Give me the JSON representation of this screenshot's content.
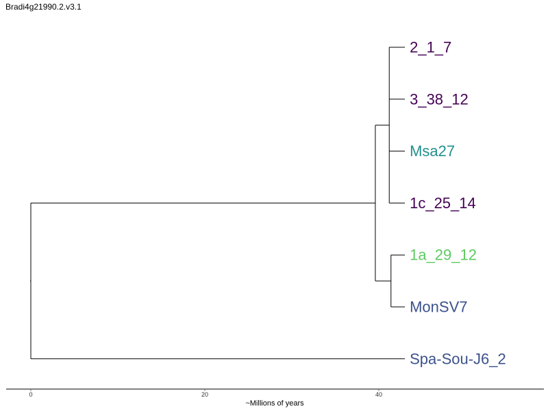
{
  "title": "Bradi4g21990.2.v3.1",
  "axis": {
    "label": "~Millions of years",
    "ticks": [
      {
        "value": 0,
        "label": "0"
      },
      {
        "value": 20,
        "label": "20"
      },
      {
        "value": 40,
        "label": "40"
      }
    ]
  },
  "colors": {
    "branch": "#000000",
    "purple": "#440154",
    "teal": "#21908c",
    "green": "#5ec962",
    "blue": "#3b528b"
  },
  "chart_data": {
    "type": "dendrogram",
    "title": "Bradi4g21990.2.v3.1",
    "xlabel": "~Millions of years",
    "xlim": [
      0,
      58.5
    ],
    "leaves": [
      {
        "name": "2_1_7",
        "color": "#440154",
        "depth": 43.0
      },
      {
        "name": "3_38_12",
        "color": "#440154",
        "depth": 43.0
      },
      {
        "name": "Msa27",
        "color": "#21908c",
        "depth": 43.0
      },
      {
        "name": "1c_25_14",
        "color": "#440154",
        "depth": 43.0
      },
      {
        "name": "1a_29_12",
        "color": "#5ec962",
        "depth": 43.0
      },
      {
        "name": "MonSV7",
        "color": "#3b528b",
        "depth": 43.0
      },
      {
        "name": "Spa-Sou-J6_2",
        "color": "#3b528b",
        "depth": 43.0
      }
    ],
    "tree": {
      "depth": 0,
      "children": [
        {
          "depth": 39.6,
          "children": [
            {
              "depth": 41.2,
              "children": [
                {
                  "leaf": 0
                },
                {
                  "leaf": 1
                },
                {
                  "leaf": 2
                },
                {
                  "leaf": 3
                }
              ]
            },
            {
              "depth": 41.4,
              "children": [
                {
                  "leaf": 4
                },
                {
                  "leaf": 5
                }
              ]
            }
          ]
        },
        {
          "leaf": 6
        }
      ]
    }
  }
}
